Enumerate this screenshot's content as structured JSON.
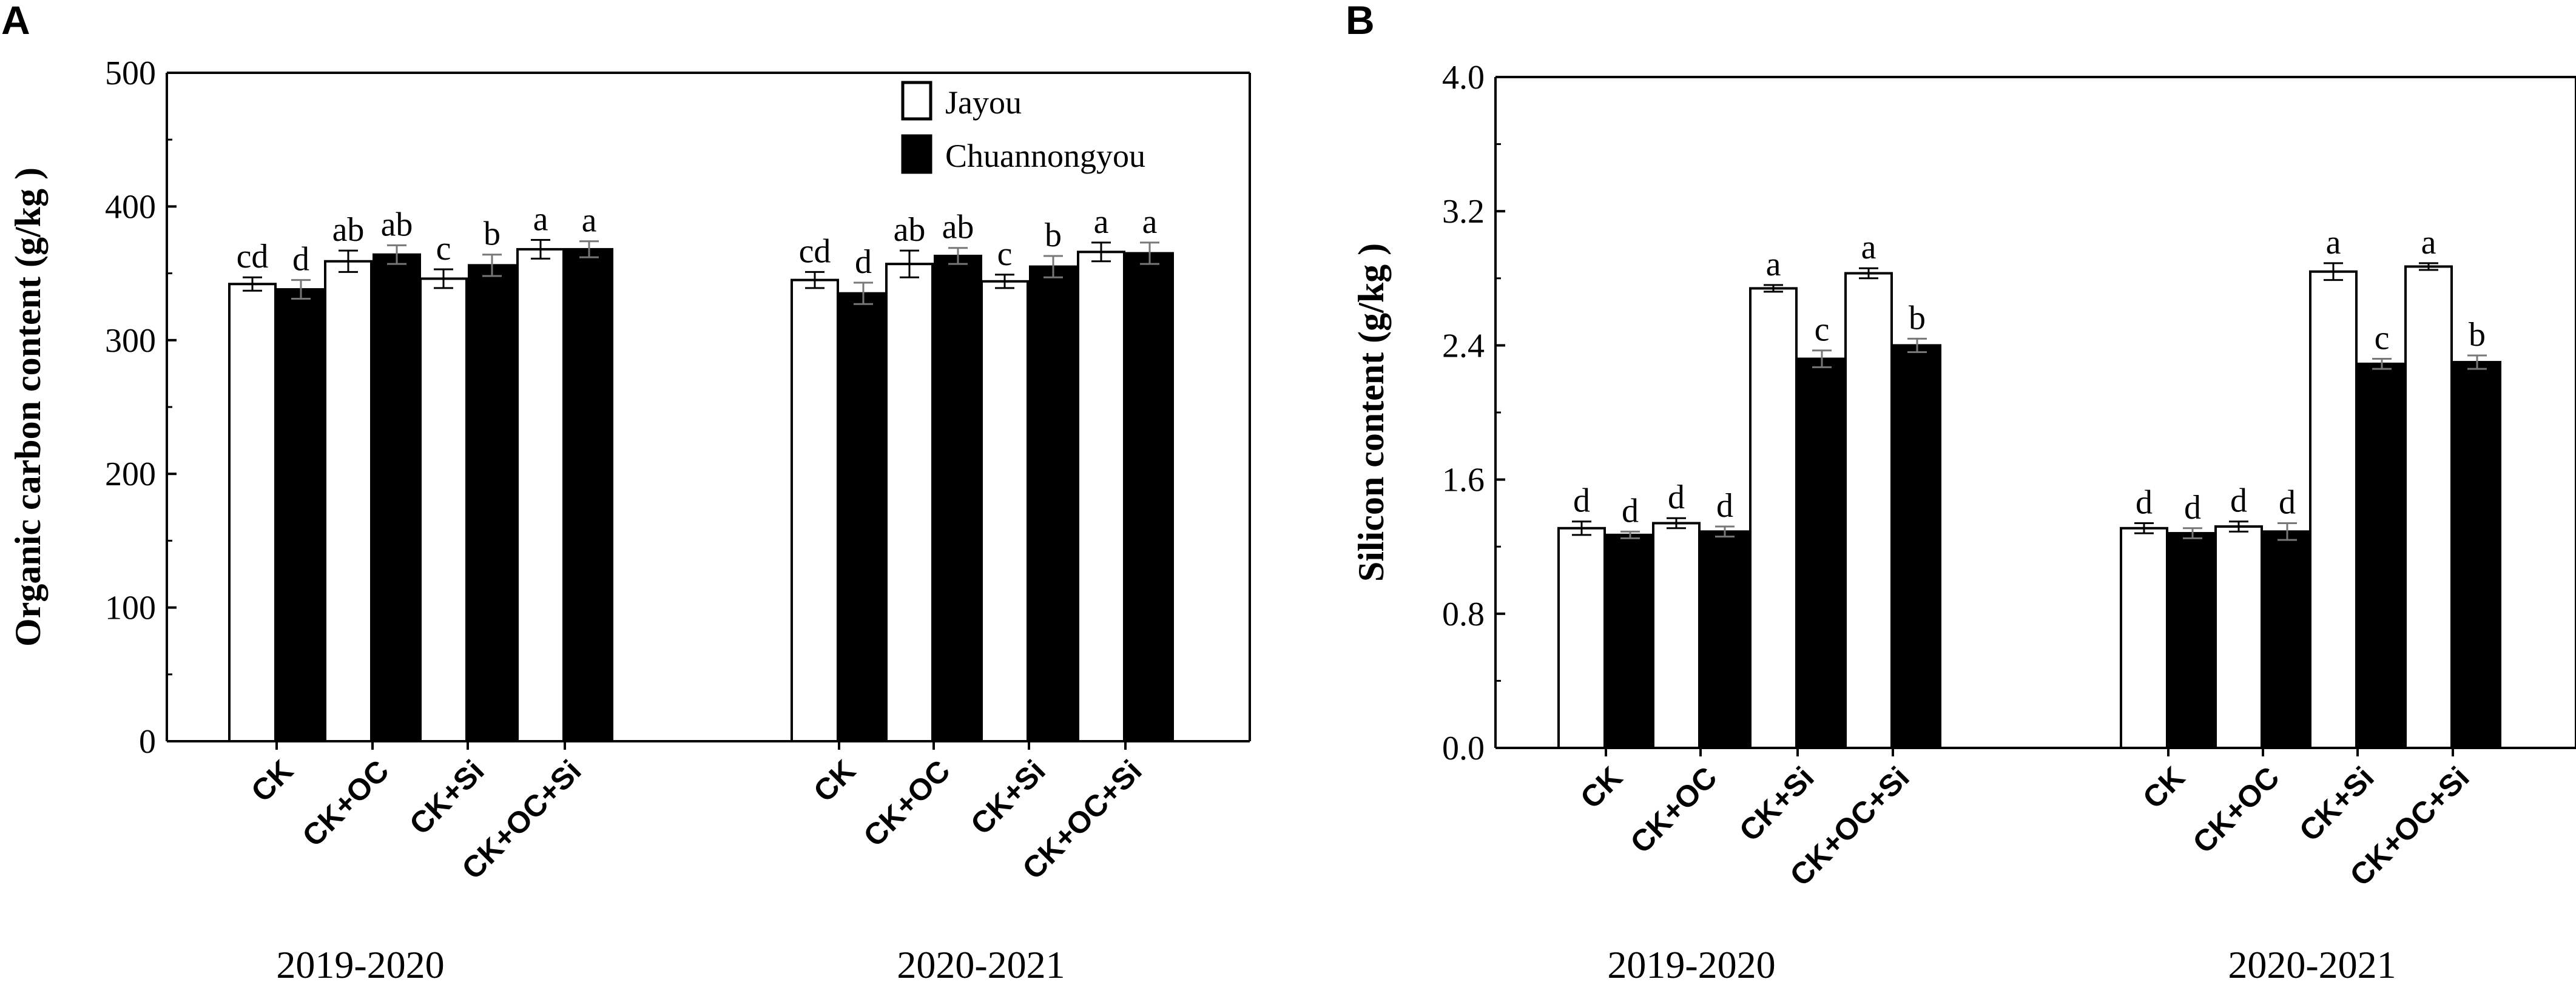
{
  "colors": {
    "jayou": "#ffffff",
    "chuannongyou": "#000000",
    "axis": "#000000"
  },
  "chart_data": [
    {
      "panel": "A",
      "type": "bar",
      "ylabel": "Organic carbon content (g/kg )",
      "ylim": [
        0,
        500
      ],
      "yticks": [
        "0",
        "100",
        "200",
        "300",
        "400",
        "500"
      ],
      "legend": {
        "placement": "top-right",
        "entries": [
          "Jayou",
          "Chuannongyou"
        ]
      },
      "groups": [
        {
          "label": "2019-2020",
          "categories": [
            "CK",
            "CK+OC",
            "CK+Si",
            "CK+OC+Si"
          ],
          "series": [
            {
              "name": "Jayou",
              "values": [
                342,
                359,
                346,
                368
              ],
              "errors": [
                5,
                8,
                7,
                7
              ],
              "letters": [
                "cd",
                "ab",
                "c",
                "a"
              ]
            },
            {
              "name": "Chuannongyou",
              "values": [
                338,
                364,
                356,
                368
              ],
              "errors": [
                7,
                7,
                8,
                6
              ],
              "letters": [
                "d",
                "ab",
                "b",
                "a"
              ]
            }
          ]
        },
        {
          "label": "2020-2021",
          "categories": [
            "CK",
            "CK+OC",
            "CK+Si",
            "CK+OC+Si"
          ],
          "series": [
            {
              "name": "Jayou",
              "values": [
                345,
                357,
                344,
                366
              ],
              "errors": [
                6,
                10,
                5,
                7
              ],
              "letters": [
                "cd",
                "ab",
                "c",
                "a"
              ]
            },
            {
              "name": "Chuannongyou",
              "values": [
                335,
                363,
                355,
                365
              ],
              "errors": [
                8,
                6,
                8,
                8
              ],
              "letters": [
                "d",
                "ab",
                "b",
                "a"
              ]
            }
          ]
        }
      ]
    },
    {
      "panel": "B",
      "type": "bar",
      "ylabel": "Silicon content (g/kg )",
      "ylim": [
        0,
        4
      ],
      "yticks": [
        "0.0",
        "0.8",
        "1.6",
        "2.4",
        "3.2",
        "4.0"
      ],
      "legend": null,
      "groups": [
        {
          "label": "2019-2020",
          "categories": [
            "CK",
            "CK+OC",
            "CK+Si",
            "CK+OC+Si"
          ],
          "series": [
            {
              "name": "Jayou",
              "values": [
                1.31,
                1.34,
                2.74,
                2.83
              ],
              "errors": [
                0.04,
                0.03,
                0.02,
                0.03
              ],
              "letters": [
                "d",
                "d",
                "a",
                "a"
              ]
            },
            {
              "name": "Chuannongyou",
              "values": [
                1.27,
                1.29,
                2.32,
                2.4
              ],
              "errors": [
                0.02,
                0.03,
                0.05,
                0.04
              ],
              "letters": [
                "d",
                "d",
                "c",
                "b"
              ]
            }
          ]
        },
        {
          "label": "2020-2021",
          "categories": [
            "CK",
            "CK+OC",
            "CK+Si",
            "CK+OC+Si"
          ],
          "series": [
            {
              "name": "Jayou",
              "values": [
                1.31,
                1.32,
                2.84,
                2.87
              ],
              "errors": [
                0.03,
                0.03,
                0.05,
                0.02
              ],
              "letters": [
                "d",
                "d",
                "a",
                "a"
              ]
            },
            {
              "name": "Chuannongyou",
              "values": [
                1.28,
                1.29,
                2.29,
                2.3
              ],
              "errors": [
                0.03,
                0.05,
                0.03,
                0.04
              ],
              "letters": [
                "d",
                "d",
                "c",
                "b"
              ]
            }
          ]
        }
      ]
    }
  ]
}
